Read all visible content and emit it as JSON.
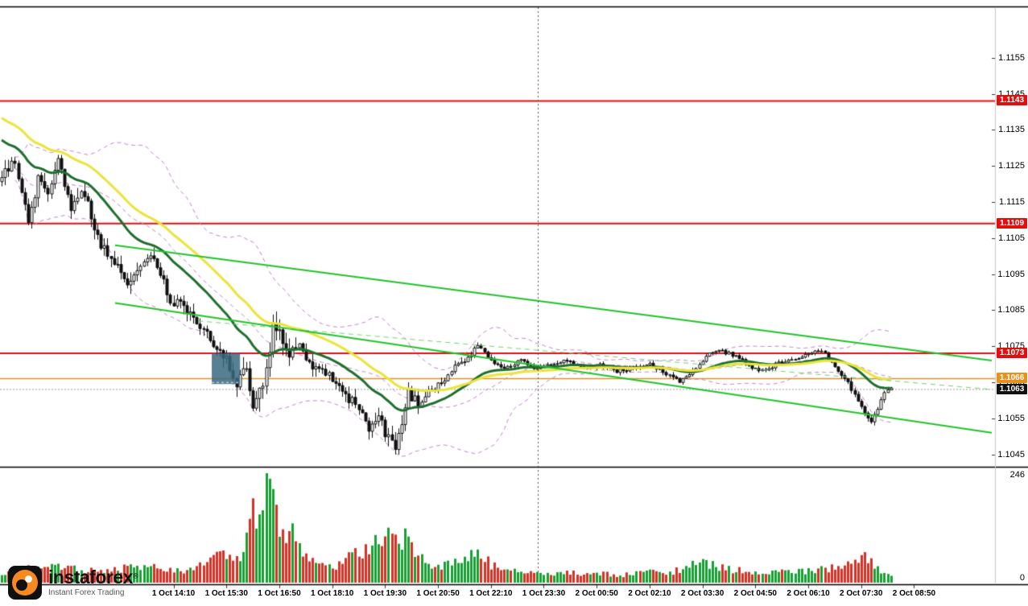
{
  "brand": {
    "name": "instaforex",
    "registered": "®",
    "tagline": "Instant Forex Trading",
    "orange": "#f6891f"
  },
  "chart_data": {
    "type": "candlestick",
    "ylim": [
      1.1042,
      1.1169
    ],
    "price_ticks": [
      "1.1155",
      "1.1145",
      "1.1135",
      "1.1125",
      "1.1115",
      "1.1105",
      "1.1095",
      "1.1085",
      "1.1075",
      "1.1065",
      "1.1055",
      "1.1045"
    ],
    "time_labels": [
      "1 Oct 14:10",
      "1 Oct 15:30",
      "1 Oct 16:50",
      "1 Oct 18:10",
      "1 Oct 19:30",
      "1 Oct 20:50",
      "1 Oct 22:10",
      "1 Oct 23:30",
      "2 Oct 00:50",
      "2 Oct 02:10",
      "2 Oct 03:30",
      "2 Oct 04:50",
      "2 Oct 06:10",
      "2 Oct 07:30",
      "2 Oct 08:50"
    ],
    "label_start": 52,
    "label_step": 16,
    "candles_n": 270,
    "x_slots": 300,
    "volume_max": 246,
    "volume_max_label": "246",
    "volume_min_label": "0",
    "current_price": 1.1063,
    "levels": [
      {
        "label": "1.1143",
        "value": 1.1143,
        "color": "#e01010",
        "width": 2,
        "dash": null
      },
      {
        "label": "1.1109",
        "value": 1.1109,
        "color": "#e01010",
        "width": 2,
        "dash": null
      },
      {
        "label": "1.1073",
        "value": 1.1073,
        "color": "#e01010",
        "width": 2,
        "dash": null
      },
      {
        "label": "1.1066",
        "value": 1.1066,
        "color": "#e8901e",
        "width": 1.5,
        "dash": null
      },
      {
        "label": "1.1063",
        "value": 1.1063,
        "color": "#111111",
        "width": 1,
        "dash": [
          2,
          2
        ],
        "line_color": "#999999"
      }
    ],
    "close_anchors": [
      [
        0,
        1.1122
      ],
      [
        4,
        1.1127
      ],
      [
        8,
        1.111
      ],
      [
        11,
        1.1121
      ],
      [
        14,
        1.1117
      ],
      [
        17,
        1.1127
      ],
      [
        21,
        1.1114
      ],
      [
        25,
        1.1118
      ],
      [
        29,
        1.1105
      ],
      [
        34,
        1.1098
      ],
      [
        38,
        1.1092
      ],
      [
        42,
        1.1097
      ],
      [
        46,
        1.11
      ],
      [
        51,
        1.1088
      ],
      [
        56,
        1.1085
      ],
      [
        60,
        1.1081
      ],
      [
        64,
        1.1075
      ],
      [
        68,
        1.1071
      ],
      [
        71,
        1.1065
      ],
      [
        74,
        1.107
      ],
      [
        76,
        1.1057
      ],
      [
        79,
        1.1065
      ],
      [
        82,
        1.108
      ],
      [
        85,
        1.1077
      ],
      [
        87,
        1.1071
      ],
      [
        90,
        1.1077
      ],
      [
        93,
        1.107
      ],
      [
        97,
        1.1068
      ],
      [
        101,
        1.1065
      ],
      [
        104,
        1.1061
      ],
      [
        108,
        1.1058
      ],
      [
        111,
        1.1052
      ],
      [
        114,
        1.1056
      ],
      [
        116,
        1.105
      ],
      [
        119,
        1.1047
      ],
      [
        121,
        1.1052
      ],
      [
        123,
        1.1062
      ],
      [
        126,
        1.1059
      ],
      [
        130,
        1.1063
      ],
      [
        133,
        1.1065
      ],
      [
        137,
        1.1069
      ],
      [
        141,
        1.1072
      ],
      [
        144,
        1.1075
      ],
      [
        148,
        1.1071
      ],
      [
        152,
        1.1069
      ],
      [
        157,
        1.1071
      ],
      [
        161,
        1.1069
      ],
      [
        166,
        1.107
      ],
      [
        171,
        1.1071
      ],
      [
        176,
        1.1069
      ],
      [
        181,
        1.107
      ],
      [
        186,
        1.1068
      ],
      [
        191,
        1.1069
      ],
      [
        196,
        1.107
      ],
      [
        200,
        1.1068
      ],
      [
        205,
        1.1065
      ],
      [
        209,
        1.1068
      ],
      [
        213,
        1.1072
      ],
      [
        216,
        1.1074
      ],
      [
        220,
        1.1073
      ],
      [
        224,
        1.1071
      ],
      [
        227,
        1.1069
      ],
      [
        231,
        1.1068
      ],
      [
        234,
        1.107
      ],
      [
        238,
        1.1071
      ],
      [
        242,
        1.1072
      ],
      [
        245,
        1.1073
      ],
      [
        248,
        1.1074
      ],
      [
        252,
        1.1069
      ],
      [
        255,
        1.1066
      ],
      [
        258,
        1.1062
      ],
      [
        261,
        1.1057
      ],
      [
        263,
        1.1054
      ],
      [
        265,
        1.1058
      ],
      [
        267,
        1.1062
      ],
      [
        269,
        1.1063
      ]
    ],
    "range_anchors": [
      [
        0,
        0.0003
      ],
      [
        20,
        0.00032
      ],
      [
        50,
        0.00026
      ],
      [
        70,
        0.0003
      ],
      [
        76,
        0.00045
      ],
      [
        84,
        0.00038
      ],
      [
        95,
        0.00024
      ],
      [
        110,
        0.00028
      ],
      [
        121,
        0.00034
      ],
      [
        128,
        0.0002
      ],
      [
        140,
        0.00014
      ],
      [
        150,
        0.0001
      ],
      [
        250,
        9e-05
      ],
      [
        258,
        0.00014
      ],
      [
        269,
        0.0001
      ]
    ],
    "volume_anchors": [
      [
        0,
        22
      ],
      [
        8,
        35
      ],
      [
        17,
        40
      ],
      [
        25,
        28
      ],
      [
        34,
        30
      ],
      [
        42,
        36
      ],
      [
        51,
        30
      ],
      [
        56,
        26
      ],
      [
        60,
        40
      ],
      [
        64,
        60
      ],
      [
        68,
        55
      ],
      [
        71,
        48
      ],
      [
        74,
        90
      ],
      [
        76,
        150
      ],
      [
        78,
        120
      ],
      [
        80,
        246
      ],
      [
        82,
        170
      ],
      [
        84,
        120
      ],
      [
        86,
        90
      ],
      [
        88,
        130
      ],
      [
        90,
        80
      ],
      [
        93,
        60
      ],
      [
        97,
        45
      ],
      [
        101,
        40
      ],
      [
        104,
        50
      ],
      [
        108,
        70
      ],
      [
        111,
        90
      ],
      [
        114,
        80
      ],
      [
        116,
        100
      ],
      [
        119,
        115
      ],
      [
        121,
        95
      ],
      [
        123,
        105
      ],
      [
        126,
        60
      ],
      [
        130,
        45
      ],
      [
        133,
        40
      ],
      [
        137,
        42
      ],
      [
        141,
        50
      ],
      [
        144,
        70
      ],
      [
        148,
        40
      ],
      [
        152,
        28
      ],
      [
        157,
        22
      ],
      [
        161,
        25
      ],
      [
        166,
        20
      ],
      [
        171,
        24
      ],
      [
        176,
        18
      ],
      [
        181,
        22
      ],
      [
        186,
        16
      ],
      [
        191,
        20
      ],
      [
        196,
        24
      ],
      [
        200,
        18
      ],
      [
        205,
        30
      ],
      [
        209,
        40
      ],
      [
        213,
        48
      ],
      [
        216,
        36
      ],
      [
        220,
        30
      ],
      [
        224,
        26
      ],
      [
        227,
        22
      ],
      [
        231,
        20
      ],
      [
        234,
        24
      ],
      [
        238,
        22
      ],
      [
        242,
        26
      ],
      [
        245,
        28
      ],
      [
        248,
        30
      ],
      [
        252,
        34
      ],
      [
        255,
        40
      ],
      [
        258,
        46
      ],
      [
        261,
        60
      ],
      [
        263,
        50
      ],
      [
        265,
        30
      ],
      [
        267,
        22
      ],
      [
        269,
        12
      ]
    ],
    "emas": [
      {
        "period": 26,
        "seed": 1.1133,
        "color": "#1e6f2e",
        "width": 3
      },
      {
        "period": 48,
        "seed": 1.1139,
        "color": "#ece43a",
        "width": 3
      }
    ],
    "bollinger": {
      "period": 34,
      "mult": 2,
      "color": "#c583cb",
      "width": 1,
      "dash": [
        5,
        4
      ]
    },
    "trendlines": [
      {
        "x1": 0.116,
        "p1": 1.1103,
        "x2": 1.0,
        "p2": 1.1071,
        "color": "#22c32a",
        "width": 2,
        "dash": null
      },
      {
        "x1": 0.116,
        "p1": 1.1087,
        "x2": 1.0,
        "p2": 1.1051,
        "color": "#22c32a",
        "width": 2,
        "dash": null
      },
      {
        "x1": 0.2,
        "p1": 1.1082,
        "x2": 1.0,
        "p2": 1.1063,
        "color": "#6fd46f",
        "width": 1,
        "dash": [
          6,
          5
        ]
      }
    ],
    "zone": {
      "x1": 0.2135,
      "x2": 0.242,
      "p1": 1.1073,
      "p2": 1.10645,
      "fill": "rgba(58,106,128,0.85)"
    },
    "day_separator": {
      "frac": 0.542,
      "color": "#555555",
      "dash": [
        2,
        3
      ]
    },
    "colors": {
      "bull": "#ffffff",
      "bear": "#111111",
      "wick": "#111111",
      "vol_up": "#18a035",
      "vol_down": "#d92f25"
    }
  }
}
